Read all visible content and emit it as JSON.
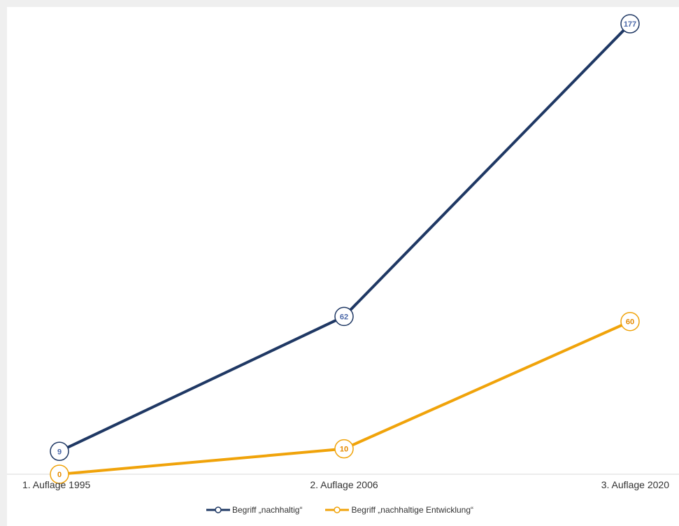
{
  "chart_data": {
    "type": "line",
    "categories": [
      "1. Auflage 1995",
      "2. Auflage 2006",
      "3. Auflage 2020"
    ],
    "series": [
      {
        "name": "Begriff „nachhaltig“",
        "values": [
          9,
          62,
          177
        ],
        "color": "#1f3864",
        "label_color": "#4a67a8"
      },
      {
        "name": "Begriff „nachhaltige Entwicklung“",
        "values": [
          0,
          10,
          60
        ],
        "color": "#f0a30a",
        "label_color": "#e58a00"
      }
    ],
    "ylim": [
      0,
      177
    ],
    "grid": false,
    "legend_position": "bottom"
  }
}
